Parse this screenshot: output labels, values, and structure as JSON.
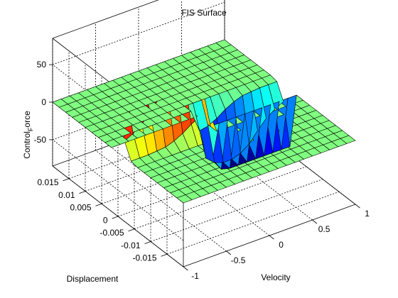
{
  "window": {
    "title": "FIS Surface"
  },
  "chart_data": {
    "type": "surface",
    "title": "FIS Surface",
    "xlabel": "Velocity",
    "ylabel": "Displacement",
    "zlabel": "Control_Force",
    "zlabel_main": "Control",
    "zlabel_sub": "F",
    "zlabel_rest": "orce",
    "colormap": "jet",
    "grid": true,
    "box": "back-planes",
    "xlim": [
      -1,
      1
    ],
    "ylim": [
      -0.02,
      0.02
    ],
    "zlim": [
      -85,
      85
    ],
    "x_ticks": [
      -1,
      -0.5,
      0,
      0.5,
      1
    ],
    "x_tick_labels": [
      "-1",
      "-0.5",
      "0",
      "0.5",
      "1"
    ],
    "y_ticks": [
      -0.015,
      -0.01,
      -0.005,
      0,
      0.005,
      0.01,
      0.015
    ],
    "y_tick_labels": [
      "-0.015",
      "-0.01",
      "-0.005",
      "0",
      "0.005",
      "0.01",
      "0.015"
    ],
    "z_ticks": [
      -50,
      0,
      50
    ],
    "z_tick_labels": [
      "-50",
      "0",
      "50"
    ],
    "x": [
      -1,
      -0.9,
      -0.8,
      -0.7,
      -0.6,
      -0.5,
      -0.4,
      -0.3,
      -0.2,
      -0.1,
      0,
      0.1,
      0.2,
      0.3,
      0.4,
      0.5,
      0.6,
      0.7,
      0.8,
      0.9,
      1
    ],
    "y": [
      -0.02,
      -0.018,
      -0.016,
      -0.014,
      -0.012,
      -0.01,
      -0.008,
      -0.006,
      -0.004,
      -0.002,
      0,
      0.002,
      0.004,
      0.006,
      0.008,
      0.01,
      0.012,
      0.014,
      0.016,
      0.018,
      0.02
    ],
    "z": [
      [
        0,
        0,
        0,
        0,
        0,
        0,
        0,
        0,
        0,
        0,
        0,
        0,
        0,
        0,
        0,
        0,
        0,
        0,
        0,
        0,
        0
      ],
      [
        0,
        0,
        0,
        0,
        0,
        0,
        0,
        0,
        0,
        0,
        0,
        0,
        0,
        0,
        0,
        0,
        0,
        0,
        0,
        0,
        0
      ],
      [
        0,
        0,
        0,
        0,
        0,
        0,
        0,
        0,
        0,
        0,
        0,
        0,
        0,
        0,
        0,
        0,
        0,
        0,
        0,
        0,
        0
      ],
      [
        0,
        0,
        0,
        0,
        0,
        0,
        0,
        0,
        0,
        0,
        0,
        0,
        0,
        0,
        0,
        0,
        0,
        0,
        0,
        0,
        0
      ],
      [
        0,
        0,
        0,
        0,
        0,
        0,
        0,
        0,
        0,
        0,
        0,
        0,
        0,
        0,
        0,
        0,
        0,
        0,
        0,
        0,
        0
      ],
      [
        0,
        0,
        0,
        0,
        0,
        0,
        0,
        0,
        0,
        0,
        0,
        0,
        0,
        0,
        0,
        0,
        0,
        0,
        0,
        0,
        0
      ],
      [
        0,
        0,
        0,
        0,
        0,
        0,
        0,
        0,
        0,
        0,
        0,
        0,
        0,
        0,
        0,
        0,
        0,
        0,
        0,
        0,
        0
      ],
      [
        0,
        0,
        0,
        0,
        0,
        0,
        0,
        0,
        0,
        0,
        0,
        0,
        0,
        0,
        0,
        0,
        0,
        0,
        0,
        0,
        0
      ],
      [
        2,
        2,
        2,
        3,
        4,
        8,
        14,
        22,
        28,
        30,
        0,
        0,
        0,
        0,
        0,
        0,
        0,
        0,
        0,
        0,
        0
      ],
      [
        22,
        28,
        36,
        48,
        62,
        70,
        74,
        74,
        70,
        60,
        0,
        0,
        0,
        0,
        0,
        0,
        0,
        0,
        0,
        0,
        0
      ],
      [
        75,
        75,
        75,
        75,
        75,
        75,
        75,
        75,
        72,
        55,
        0,
        -55,
        -72,
        -75,
        -75,
        -75,
        -75,
        -75,
        -75,
        -75,
        -75
      ],
      [
        0,
        0,
        0,
        0,
        0,
        0,
        0,
        0,
        0,
        0,
        0,
        -60,
        -70,
        -74,
        -74,
        -70,
        -62,
        -48,
        -36,
        -28,
        -22
      ],
      [
        0,
        0,
        0,
        0,
        0,
        0,
        0,
        0,
        0,
        0,
        0,
        -30,
        -28,
        -22,
        -14,
        -8,
        -4,
        -3,
        -2,
        -2,
        -2
      ],
      [
        0,
        0,
        0,
        0,
        0,
        0,
        0,
        0,
        0,
        0,
        0,
        0,
        0,
        0,
        0,
        0,
        0,
        0,
        0,
        0,
        0
      ],
      [
        0,
        0,
        0,
        0,
        0,
        0,
        0,
        0,
        0,
        0,
        0,
        0,
        0,
        0,
        0,
        0,
        0,
        0,
        0,
        0,
        0
      ],
      [
        0,
        0,
        0,
        0,
        0,
        0,
        0,
        0,
        0,
        0,
        0,
        0,
        0,
        0,
        0,
        0,
        0,
        0,
        0,
        0,
        0
      ],
      [
        0,
        0,
        0,
        0,
        0,
        0,
        0,
        0,
        0,
        0,
        0,
        0,
        0,
        0,
        0,
        0,
        0,
        0,
        0,
        0,
        0
      ],
      [
        0,
        0,
        0,
        0,
        0,
        0,
        0,
        0,
        0,
        0,
        0,
        0,
        0,
        0,
        0,
        0,
        0,
        0,
        0,
        0,
        0
      ],
      [
        0,
        0,
        0,
        0,
        0,
        0,
        0,
        0,
        0,
        0,
        0,
        0,
        0,
        0,
        0,
        0,
        0,
        0,
        0,
        0,
        0
      ],
      [
        0,
        0,
        0,
        0,
        0,
        0,
        0,
        0,
        0,
        0,
        0,
        0,
        0,
        0,
        0,
        0,
        0,
        0,
        0,
        0,
        0
      ],
      [
        0,
        0,
        0,
        0,
        0,
        0,
        0,
        0,
        0,
        0,
        0,
        0,
        0,
        0,
        0,
        0,
        0,
        0,
        0,
        0,
        0
      ]
    ]
  }
}
